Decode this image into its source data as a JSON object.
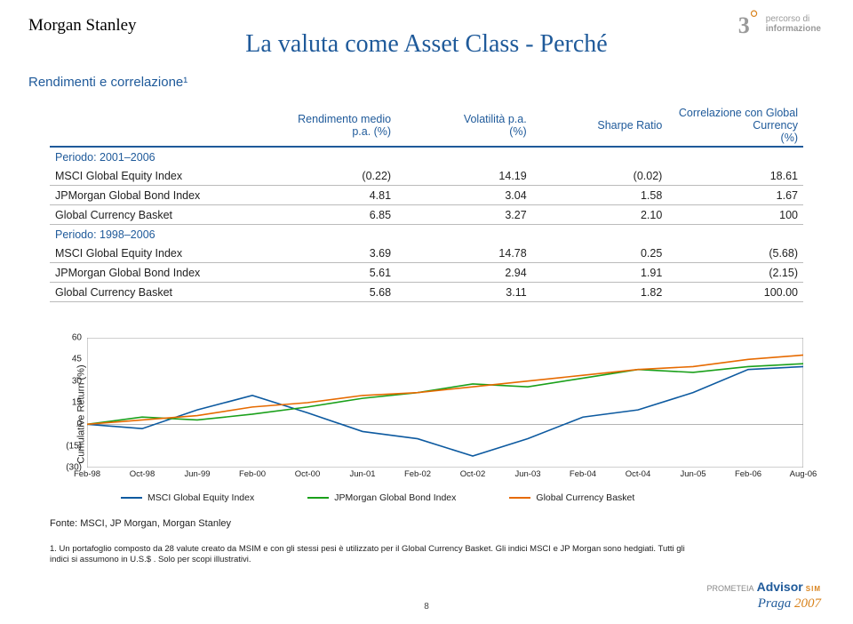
{
  "logo_ms": "Morgan Stanley",
  "logo_right": {
    "three": "3",
    "up": "°",
    "line1": "percorso di",
    "line2": "informazione"
  },
  "title": "La valuta come Asset Class - Perché",
  "subtitle": "Rendimenti e correlazione¹",
  "table": {
    "headers": [
      {
        "l1": "",
        "l2": ""
      },
      {
        "l1": "Rendimento medio",
        "l2": "p.a. (%)"
      },
      {
        "l1": "Volatilità p.a.",
        "l2": "(%)"
      },
      {
        "l1": "",
        "l2": "Sharpe Ratio"
      },
      {
        "l1": "Correlazione con Global Currency",
        "l2": "(%)"
      }
    ],
    "sections": [
      {
        "label": "Periodo: 2001–2006",
        "rows": [
          {
            "name": "MSCI Global Equity Index",
            "v": [
              "(0.22)",
              "14.19",
              "(0.02)",
              "18.61"
            ]
          },
          {
            "name": "JPMorgan Global Bond Index",
            "v": [
              "4.81",
              "3.04",
              "1.58",
              "1.67"
            ]
          },
          {
            "name": "Global Currency Basket",
            "v": [
              "6.85",
              "3.27",
              "2.10",
              "100"
            ]
          }
        ]
      },
      {
        "label": "Periodo: 1998–2006",
        "rows": [
          {
            "name": "MSCI Global Equity Index",
            "v": [
              "3.69",
              "14.78",
              "0.25",
              "(5.68)"
            ]
          },
          {
            "name": "JPMorgan Global Bond Index",
            "v": [
              "5.61",
              "2.94",
              "1.91",
              "(2.15)"
            ]
          },
          {
            "name": "Global Currency Basket",
            "v": [
              "5.68",
              "3.11",
              "1.82",
              "100.00"
            ]
          }
        ]
      }
    ]
  },
  "chart": {
    "ylabel": "Cumulative Return (%)",
    "ymin": -30,
    "ymax": 60,
    "yticks": [
      -30,
      -15,
      0,
      15,
      30,
      45,
      60
    ],
    "yticklabels": [
      "(30)",
      "(15)",
      "0",
      "15",
      "30",
      "45",
      "60"
    ],
    "xticks": [
      "Feb-98",
      "Oct-98",
      "Jun-99",
      "Feb-00",
      "Oct-00",
      "Jun-01",
      "Feb-02",
      "Oct-02",
      "Jun-03",
      "Feb-04",
      "Oct-04",
      "Jun-05",
      "Feb-06",
      "Aug-06"
    ],
    "series": [
      {
        "name": "MSCI Global Equity Index",
        "color": "#0d5aa0",
        "x": [
          0,
          1,
          2,
          3,
          4,
          5,
          6,
          7,
          8,
          9,
          10,
          11,
          12,
          13
        ],
        "y": [
          0,
          -3,
          10,
          20,
          8,
          -5,
          -10,
          -22,
          -10,
          5,
          10,
          22,
          38,
          40
        ]
      },
      {
        "name": "JPMorgan Global Bond Index",
        "color": "#1aa01a",
        "x": [
          0,
          1,
          2,
          3,
          4,
          5,
          6,
          7,
          8,
          9,
          10,
          11,
          12,
          13
        ],
        "y": [
          0,
          5,
          3,
          7,
          12,
          18,
          22,
          28,
          26,
          32,
          38,
          36,
          40,
          42
        ]
      },
      {
        "name": "Global Currency Basket",
        "color": "#e66a00",
        "x": [
          0,
          1,
          2,
          3,
          4,
          5,
          6,
          7,
          8,
          9,
          10,
          11,
          12,
          13
        ],
        "y": [
          0,
          3,
          6,
          12,
          15,
          20,
          22,
          26,
          30,
          34,
          38,
          40,
          45,
          48
        ]
      }
    ],
    "bg": "#ffffff",
    "grid": "#d9d9d9",
    "axis": "#888888"
  },
  "fonte": "Fonte: MSCI, JP Morgan, Morgan Stanley",
  "footnote": "1. Un portafoglio composto da 28 valute creato da MSIM e con gli stessi pesi è utilizzato per il Global Currency Basket. Gli indici MSCI e JP Morgan sono hedgiati. Tutti gli indici si assumono in U.S.$ . Solo per scopi illustrativi.",
  "pageno": "8",
  "bottom": {
    "brand1": "PROMETEIA",
    "brand2": "Advisor",
    "sim": "SIM",
    "praga": "Praga ",
    "year": "2007"
  }
}
